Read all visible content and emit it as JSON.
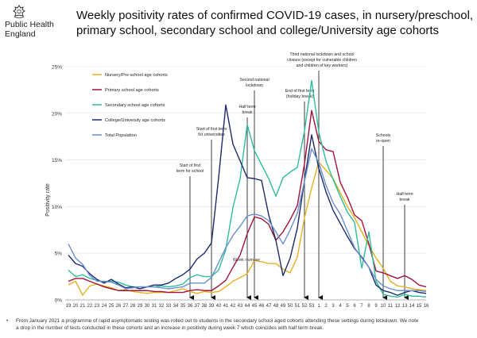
{
  "header": {
    "org_line1": "Public Health",
    "org_line2": "England",
    "title_line1": "Weekly positivity rates of confirmed COVID-19 cases, in nursery/preschool,",
    "title_line2": "primary school, secondary school and college/University age cohorts",
    "crest_icon": "royal-crest-icon"
  },
  "footnote": {
    "line1": "From January 2021 a programme of rapid asymptomatic testing was rolled out to students in the secondary school aged cohorts attending these settings during lockdown. We note",
    "line2": "a drop in the number of tests conducted in these cohorts and an increase in positivity during week 7 which coincides with half term break."
  },
  "chart_data": {
    "type": "line",
    "ylabel": "Positivity rate",
    "xlabel": "Week number",
    "ylim": [
      0,
      25
    ],
    "yticks": [
      "0%",
      "5%",
      "10%",
      "15%",
      "20%",
      "25%"
    ],
    "categories": [
      "19",
      "20",
      "21",
      "22",
      "23",
      "24",
      "25",
      "26",
      "27",
      "28",
      "29",
      "30",
      "31",
      "32",
      "33",
      "34",
      "35",
      "36",
      "37",
      "38",
      "39",
      "40",
      "41",
      "42",
      "43",
      "44",
      "45",
      "46",
      "47",
      "48",
      "49",
      "50",
      "51",
      "52",
      "53",
      "1",
      "2",
      "3",
      "4",
      "5",
      "6",
      "7",
      "8",
      "9",
      "10",
      "11",
      "12",
      "13",
      "14",
      "15",
      "16"
    ],
    "series": [
      {
        "name": "Nursery/Pre-school age cohorts",
        "color": "#e8b020",
        "values": [
          1.6,
          2.0,
          0.5,
          1.5,
          1.7,
          1.5,
          1.3,
          1.0,
          1.1,
          0.9,
          0.8,
          0.7,
          0.8,
          0.8,
          0.8,
          1.0,
          1.2,
          0.9,
          0.7,
          0.9,
          0.8,
          0.9,
          1.4,
          2.0,
          2.4,
          2.8,
          4.2,
          4.1,
          3.9,
          3.9,
          3.3,
          2.9,
          4.6,
          8.8,
          12.0,
          14.8,
          13.9,
          13.0,
          11.5,
          10.0,
          8.8,
          7.3,
          5.8,
          4.5,
          3.4,
          2.0,
          1.5,
          1.4,
          1.2,
          1.1,
          1.0
        ]
      },
      {
        "name": "Primary school age cohorts",
        "color": "#a0123c",
        "values": [
          2.0,
          2.3,
          2.3,
          2.0,
          1.7,
          1.4,
          1.2,
          1.0,
          1.0,
          1.0,
          1.0,
          1.0,
          0.9,
          0.9,
          0.8,
          0.8,
          0.8,
          1.0,
          1.1,
          1.0,
          1.0,
          1.5,
          2.1,
          3.5,
          4.8,
          7.1,
          8.9,
          8.7,
          8.1,
          6.4,
          7.3,
          8.6,
          10.1,
          14.6,
          20.3,
          17.0,
          16.1,
          15.9,
          12.6,
          11.0,
          9.1,
          8.5,
          6.0,
          3.1,
          2.9,
          2.6,
          2.3,
          2.6,
          2.2,
          1.6,
          1.4
        ]
      },
      {
        "name": "Secondary school age cohorts",
        "color": "#2ebd9b",
        "values": [
          3.2,
          2.5,
          2.7,
          2.3,
          2.1,
          1.9,
          2.0,
          1.9,
          1.6,
          1.4,
          1.4,
          1.4,
          1.4,
          1.5,
          1.4,
          1.5,
          1.7,
          2.4,
          2.7,
          2.5,
          2.5,
          3.2,
          5.4,
          9.9,
          13.0,
          18.8,
          16.0,
          14.5,
          13.0,
          11.1,
          13.1,
          13.7,
          14.2,
          18.1,
          23.5,
          18.0,
          14.9,
          12.9,
          11.1,
          9.4,
          8.3,
          3.4,
          7.3,
          2.0,
          0.6,
          0.4,
          0.3,
          0.6,
          0.4,
          0.4,
          0.3
        ]
      },
      {
        "name": "College/University age cohorts",
        "color": "#1b2a6b",
        "values": [
          4.8,
          3.9,
          3.6,
          2.8,
          2.2,
          1.8,
          2.2,
          1.7,
          1.3,
          1.4,
          1.2,
          1.4,
          1.6,
          1.6,
          1.8,
          2.3,
          2.7,
          3.3,
          4.4,
          5.0,
          6.1,
          13.1,
          20.9,
          16.7,
          14.9,
          13.1,
          13.0,
          12.8,
          9.1,
          6.4,
          2.6,
          4.5,
          7.7,
          12.8,
          17.7,
          14.1,
          11.6,
          9.6,
          8.2,
          6.8,
          5.5,
          4.6,
          3.5,
          1.6,
          1.0,
          0.8,
          0.5,
          0.8,
          1.0,
          0.8,
          0.7
        ]
      },
      {
        "name": "Total Population",
        "color": "#6a8fcf",
        "values": [
          6.0,
          4.5,
          3.8,
          2.6,
          2.0,
          2.0,
          1.9,
          1.6,
          1.2,
          1.3,
          1.4,
          1.4,
          1.4,
          1.3,
          1.2,
          1.3,
          1.4,
          1.8,
          1.8,
          1.8,
          2.4,
          4.0,
          5.6,
          6.9,
          7.9,
          9.0,
          9.2,
          9.0,
          8.5,
          7.3,
          6.0,
          7.5,
          9.3,
          12.7,
          16.2,
          14.7,
          12.3,
          10.4,
          9.2,
          7.4,
          5.6,
          4.5,
          3.5,
          2.2,
          1.5,
          1.2,
          1.0,
          1.0,
          1.0,
          1.0,
          0.9
        ]
      }
    ],
    "legend_position": "top-left",
    "annotations": [
      {
        "label": [
          "Start of first",
          "term for school"
        ],
        "week": "36"
      },
      {
        "label": [
          "Start of first term",
          "for universities"
        ],
        "week": "39"
      },
      {
        "label": [
          "Half term",
          "break"
        ],
        "week": "44"
      },
      {
        "label": [
          "Second  national",
          "lockdown"
        ],
        "week": "45"
      },
      {
        "label": [
          "End of first term",
          "(holiday break)"
        ],
        "week": "52"
      },
      {
        "label": [
          "Third national lockdown and school",
          "closure (except for vulnerable children",
          "and children of key workers)"
        ],
        "week": "1"
      },
      {
        "label": [
          "Schools",
          "re-open"
        ],
        "week": "10"
      },
      {
        "label": [
          "Half term",
          "break"
        ],
        "week": "13"
      }
    ]
  }
}
